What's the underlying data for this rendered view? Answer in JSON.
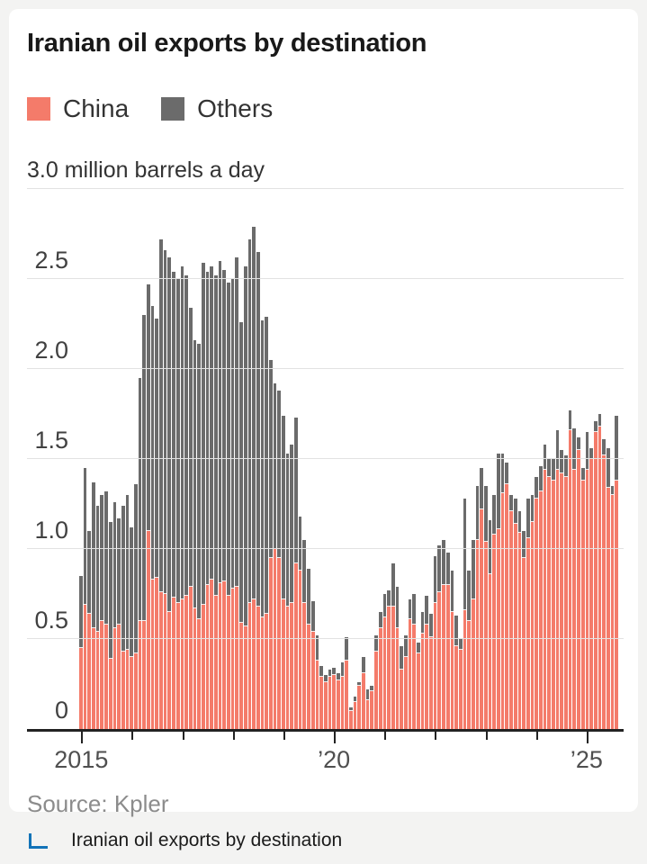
{
  "card": {
    "title": "Iranian oil exports by destination",
    "unit_label": "3.0 million barrels a day",
    "source": "Source: Kpler"
  },
  "legend": {
    "items": [
      {
        "label": "China",
        "color": "#f47b6a"
      },
      {
        "label": "Others",
        "color": "#6b6b6b"
      }
    ]
  },
  "caption": {
    "icon": "axis-corner-icon",
    "icon_color": "#1273b8",
    "text": "Iranian oil exports by destination"
  },
  "colors": {
    "china": "#f47b6a",
    "others": "#6b6b6b",
    "gridline": "#e2e2e2",
    "axis": "#222222",
    "page_background": "#f3f3f2",
    "card_background": "#ffffff"
  },
  "chart_data": {
    "type": "bar",
    "stacked": true,
    "title": "Iranian oil exports by destination",
    "ylabel": "million barrels a day",
    "ylim": [
      0,
      3.0
    ],
    "ytick_lines": [
      0.5,
      1.0,
      1.5,
      2.0,
      2.5
    ],
    "ytick_labels": [
      {
        "value": 0,
        "label": "0"
      },
      {
        "value": 0.5,
        "label": "0.5"
      },
      {
        "value": 1.0,
        "label": "1.0"
      },
      {
        "value": 1.5,
        "label": "1.5"
      },
      {
        "value": 2.0,
        "label": "2.0"
      },
      {
        "value": 2.5,
        "label": "2.5"
      }
    ],
    "top_axis_label": "3.0 million barrels a day",
    "x_start": "2015-01",
    "x_end": "2025-08",
    "x_interval": "month",
    "months_count": 128,
    "xticks": [
      {
        "year": 2015,
        "label": "2015"
      },
      {
        "year": 2016,
        "label": ""
      },
      {
        "year": 2017,
        "label": ""
      },
      {
        "year": 2018,
        "label": ""
      },
      {
        "year": 2019,
        "label": ""
      },
      {
        "year": 2020,
        "label": "’20"
      },
      {
        "year": 2021,
        "label": ""
      },
      {
        "year": 2022,
        "label": ""
      },
      {
        "year": 2023,
        "label": ""
      },
      {
        "year": 2024,
        "label": ""
      },
      {
        "year": 2025,
        "label": "’25"
      }
    ],
    "legend_position": "top",
    "grid": "horizontal",
    "series": [
      {
        "name": "China",
        "color": "#f47b6a",
        "values": [
          0.45,
          0.69,
          0.64,
          0.56,
          0.54,
          0.6,
          0.58,
          0.39,
          0.56,
          0.58,
          0.43,
          0.44,
          0.4,
          0.42,
          0.6,
          0.6,
          1.1,
          0.83,
          0.84,
          0.76,
          0.75,
          0.65,
          0.73,
          0.7,
          0.72,
          0.74,
          0.79,
          0.67,
          0.61,
          0.69,
          0.8,
          0.83,
          0.74,
          0.81,
          0.82,
          0.74,
          0.78,
          0.79,
          0.59,
          0.57,
          0.7,
          0.72,
          0.68,
          0.62,
          0.64,
          0.95,
          1.0,
          0.95,
          0.72,
          0.68,
          0.7,
          0.92,
          0.88,
          0.7,
          0.58,
          0.54,
          0.38,
          0.29,
          0.26,
          0.29,
          0.3,
          0.27,
          0.29,
          0.38,
          0.1,
          0.15,
          0.24,
          0.31,
          0.16,
          0.21,
          0.43,
          0.56,
          0.62,
          0.68,
          0.68,
          0.56,
          0.33,
          0.4,
          0.61,
          0.58,
          0.42,
          0.53,
          0.58,
          0.51,
          0.7,
          0.76,
          0.8,
          0.8,
          0.65,
          0.46,
          0.44,
          0.66,
          0.6,
          0.72,
          1.05,
          1.22,
          1.04,
          0.86,
          1.08,
          1.11,
          1.31,
          1.36,
          1.21,
          1.14,
          1.09,
          0.95,
          1.06,
          1.15,
          1.28,
          1.32,
          1.44,
          1.4,
          1.38,
          1.44,
          1.42,
          1.4,
          1.66,
          1.44,
          1.55,
          1.38,
          1.44,
          1.5,
          1.65,
          1.68,
          1.52,
          1.34,
          1.3,
          1.38
        ]
      },
      {
        "name": "Others",
        "color": "#6b6b6b",
        "values": [
          0.4,
          0.76,
          0.46,
          0.81,
          0.7,
          0.7,
          0.74,
          0.76,
          0.7,
          0.59,
          0.81,
          0.86,
          0.72,
          0.94,
          1.35,
          1.7,
          1.37,
          1.52,
          1.44,
          1.96,
          1.91,
          1.97,
          1.81,
          1.8,
          1.85,
          1.78,
          1.55,
          1.49,
          1.53,
          1.9,
          1.74,
          1.74,
          1.78,
          1.79,
          1.73,
          1.74,
          1.72,
          1.83,
          1.67,
          2.0,
          2.02,
          2.07,
          1.97,
          1.65,
          1.65,
          1.1,
          0.92,
          0.93,
          1.02,
          0.85,
          0.88,
          0.81,
          0.3,
          0.35,
          0.31,
          0.17,
          0.14,
          0.06,
          0.04,
          0.04,
          0.04,
          0.04,
          0.08,
          0.13,
          0.02,
          0.03,
          0.02,
          0.09,
          0.06,
          0.03,
          0.09,
          0.09,
          0.13,
          0.09,
          0.24,
          0.23,
          0.13,
          0.12,
          0.11,
          0.17,
          0.06,
          0.12,
          0.16,
          0.13,
          0.26,
          0.26,
          0.25,
          0.18,
          0.23,
          0.17,
          0.06,
          0.62,
          0.28,
          0.33,
          0.3,
          0.23,
          0.31,
          0.3,
          0.22,
          0.42,
          0.22,
          0.12,
          0.09,
          0.14,
          0.12,
          0.15,
          0.22,
          0.15,
          0.12,
          0.14,
          0.14,
          0.1,
          0.12,
          0.22,
          0.13,
          0.12,
          0.11,
          0.23,
          0.07,
          0.07,
          0.21,
          0.06,
          0.06,
          0.07,
          0.09,
          0.22,
          0.05,
          0.36
        ]
      }
    ]
  }
}
